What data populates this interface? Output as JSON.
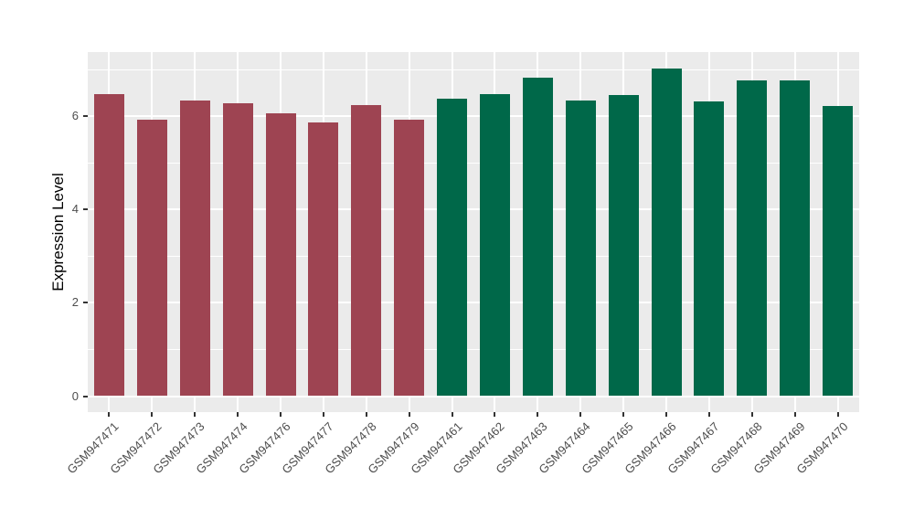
{
  "chart_data": {
    "type": "bar",
    "title": "",
    "xlabel": "",
    "ylabel": "Expression Level",
    "yticks": [
      0,
      2,
      4,
      6
    ],
    "ylim": [
      -0.35,
      7.37
    ],
    "grid": "horizontal major at 0/2/4/6, horizontal minor at 1/3/5/7, vertical major at each category center",
    "legend_position": "none",
    "categories": [
      "GSM947471",
      "GSM947472",
      "GSM947473",
      "GSM947474",
      "GSM947476",
      "GSM947477",
      "GSM947478",
      "GSM947479",
      "GSM947461",
      "GSM947462",
      "GSM947463",
      "GSM947464",
      "GSM947465",
      "GSM947466",
      "GSM947467",
      "GSM947468",
      "GSM947469",
      "GSM947470"
    ],
    "values": [
      6.48,
      5.92,
      6.34,
      6.27,
      6.06,
      5.86,
      6.23,
      5.92,
      6.38,
      6.47,
      6.82,
      6.33,
      6.45,
      7.02,
      6.31,
      6.77,
      6.77,
      6.22
    ],
    "groups": [
      "group1",
      "group1",
      "group1",
      "group1",
      "group1",
      "group1",
      "group1",
      "group1",
      "group2",
      "group2",
      "group2",
      "group2",
      "group2",
      "group2",
      "group2",
      "group2",
      "group2",
      "group2"
    ],
    "group_colors": {
      "group1": "#9E4452",
      "group2": "#006849"
    }
  },
  "colors": {
    "figure_background": "#FFFFFF",
    "panel_background": "#EBEBEB",
    "gridline": "#FFFFFF",
    "axis_text": "#4D4D4D",
    "axis_title": "#000000",
    "tick_mark": "#333333"
  }
}
